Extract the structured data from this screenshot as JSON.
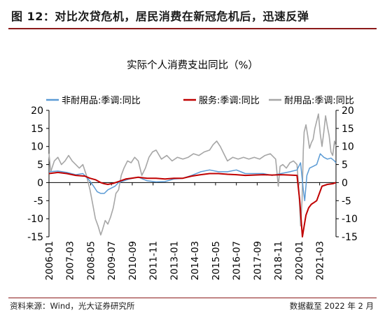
{
  "figure": {
    "title": "图 12：对比次贷危机，居民消费在新冠危机后，迅速反弹",
    "source": "资料来源：Wind，光大证券研究所",
    "deadline": "数据截至 2022 年 2 月"
  },
  "colors": {
    "rule": "#8b1a1a",
    "nondurable": "#5b9bd5",
    "services": "#c00000",
    "durable": "#a6a6a6"
  },
  "chart_data": {
    "type": "line",
    "title": "实际个人消费支出同比（%）",
    "ylim": [
      -15,
      20
    ],
    "y_ticks": [
      20,
      15,
      10,
      5,
      0,
      -5,
      -10,
      -15
    ],
    "y2_ticks": [
      20,
      15,
      10,
      5,
      0,
      -5,
      -10,
      -15
    ],
    "x_range": [
      2006.0,
      2022.083
    ],
    "x_tick_labels": [
      "2006-01",
      "2007-03",
      "2008-05",
      "2009-07",
      "2010-09",
      "2011-11",
      "2013-01",
      "2014-03",
      "2015-05",
      "2016-07",
      "2017-09",
      "2018-11",
      "2020-01",
      "2021-03"
    ],
    "grid": false,
    "legend_position": "top",
    "series": [
      {
        "name": "非耐用品:季调:同比",
        "axis": "left",
        "x": [
          2006.0,
          2006.5,
          2007.0,
          2007.5,
          2007.9,
          2008.2,
          2008.5,
          2008.7,
          2008.9,
          2009.1,
          2009.3,
          2009.5,
          2009.7,
          2009.9,
          2010.2,
          2010.5,
          2011.0,
          2011.5,
          2012.0,
          2012.5,
          2013.0,
          2013.5,
          2014.0,
          2014.5,
          2015.0,
          2015.5,
          2016.0,
          2016.5,
          2017.0,
          2017.5,
          2018.0,
          2018.5,
          2019.0,
          2019.5,
          2019.9,
          2020.1,
          2020.25,
          2020.33,
          2020.45,
          2020.6,
          2020.8,
          2021.0,
          2021.2,
          2021.4,
          2021.6,
          2021.8,
          2022.0,
          2022.08
        ],
        "y": [
          3.0,
          3.2,
          2.8,
          2.2,
          2.5,
          1.0,
          -1.0,
          -2.5,
          -3.0,
          -3.0,
          -2.0,
          -1.5,
          -1.0,
          0.0,
          0.5,
          1.0,
          1.5,
          0.5,
          0.2,
          0.3,
          1.0,
          1.2,
          2.0,
          3.0,
          3.5,
          3.0,
          3.0,
          3.5,
          2.5,
          2.5,
          2.5,
          2.0,
          2.5,
          3.0,
          3.5,
          5.5,
          -2.0,
          -5.0,
          2.0,
          4.0,
          4.5,
          5.0,
          8.0,
          7.0,
          6.5,
          6.8,
          6.0,
          5.5
        ]
      },
      {
        "name": "服务:季调:同比",
        "axis": "left",
        "x": [
          2006.0,
          2006.5,
          2007.0,
          2007.5,
          2008.0,
          2008.3,
          2008.6,
          2008.9,
          2009.1,
          2009.3,
          2009.6,
          2009.9,
          2010.3,
          2010.6,
          2011.0,
          2011.5,
          2012.0,
          2012.5,
          2013.0,
          2013.5,
          2014.0,
          2014.5,
          2015.0,
          2015.5,
          2016.0,
          2016.5,
          2017.0,
          2017.5,
          2018.0,
          2018.5,
          2019.0,
          2019.5,
          2019.9,
          2020.05,
          2020.2,
          2020.3,
          2020.4,
          2020.55,
          2020.7,
          2020.85,
          2021.0,
          2021.3,
          2021.6,
          2021.9,
          2022.08
        ],
        "y": [
          2.5,
          2.8,
          2.5,
          2.0,
          1.8,
          1.2,
          0.8,
          0.0,
          -0.3,
          -0.5,
          -0.2,
          0.3,
          1.0,
          1.2,
          1.5,
          1.2,
          1.2,
          1.0,
          1.2,
          1.2,
          1.8,
          2.2,
          2.5,
          2.5,
          2.3,
          2.2,
          2.0,
          2.1,
          2.2,
          2.1,
          2.2,
          2.1,
          2.0,
          -5.0,
          -15.0,
          -12.0,
          -9.0,
          -7.0,
          -6.0,
          -5.5,
          -5.0,
          -1.0,
          -0.5,
          -0.3,
          0.0
        ]
      },
      {
        "name": "耐用品:季调:同比",
        "axis": "right",
        "x": [
          2006.0,
          2006.1,
          2006.3,
          2006.5,
          2006.7,
          2006.9,
          2007.1,
          2007.3,
          2007.5,
          2007.7,
          2007.9,
          2008.1,
          2008.3,
          2008.45,
          2008.6,
          2008.75,
          2008.9,
          2009.0,
          2009.15,
          2009.3,
          2009.45,
          2009.6,
          2009.75,
          2009.9,
          2010.05,
          2010.2,
          2010.4,
          2010.6,
          2010.8,
          2011.0,
          2011.2,
          2011.4,
          2011.6,
          2011.8,
          2012.0,
          2012.3,
          2012.6,
          2012.9,
          2013.2,
          2013.5,
          2013.8,
          2014.1,
          2014.4,
          2014.7,
          2015.0,
          2015.2,
          2015.4,
          2015.6,
          2015.8,
          2016.0,
          2016.3,
          2016.6,
          2016.9,
          2017.2,
          2017.5,
          2017.8,
          2018.1,
          2018.4,
          2018.7,
          2018.85,
          2018.95,
          2019.1,
          2019.3,
          2019.5,
          2019.7,
          2019.9,
          2020.0,
          2020.1,
          2020.18,
          2020.25,
          2020.3,
          2020.4,
          2020.5,
          2020.6,
          2020.7,
          2020.8,
          2020.9,
          2021.0,
          2021.1,
          2021.2,
          2021.3,
          2021.4,
          2021.5,
          2021.6,
          2021.7,
          2021.8,
          2021.9,
          2022.0,
          2022.08
        ],
        "y": [
          8.0,
          3.0,
          6.0,
          7.0,
          5.0,
          6.0,
          7.5,
          6.0,
          5.0,
          4.0,
          5.0,
          2.0,
          -2.0,
          -6.0,
          -10.0,
          -12.0,
          -14.5,
          -13.0,
          -10.5,
          -11.5,
          -9.5,
          -7.0,
          -3.0,
          -2.0,
          2.0,
          4.0,
          6.0,
          5.5,
          7.0,
          6.0,
          2.0,
          4.0,
          7.0,
          8.5,
          9.0,
          6.5,
          7.5,
          6.0,
          7.0,
          6.5,
          7.0,
          8.0,
          7.5,
          8.5,
          9.0,
          10.5,
          11.5,
          10.0,
          8.0,
          6.0,
          7.0,
          6.5,
          7.0,
          6.5,
          7.0,
          6.5,
          7.5,
          8.0,
          6.5,
          -1.0,
          4.5,
          5.0,
          4.0,
          5.5,
          6.0,
          5.0,
          -2.0,
          -12.0,
          -5.0,
          9.0,
          14.0,
          16.0,
          13.0,
          9.5,
          11.0,
          12.0,
          15.0,
          17.0,
          19.0,
          13.5,
          10.0,
          14.0,
          18.5,
          15.5,
          13.0,
          8.5,
          7.5,
          11.5,
          10.0
        ]
      }
    ]
  }
}
